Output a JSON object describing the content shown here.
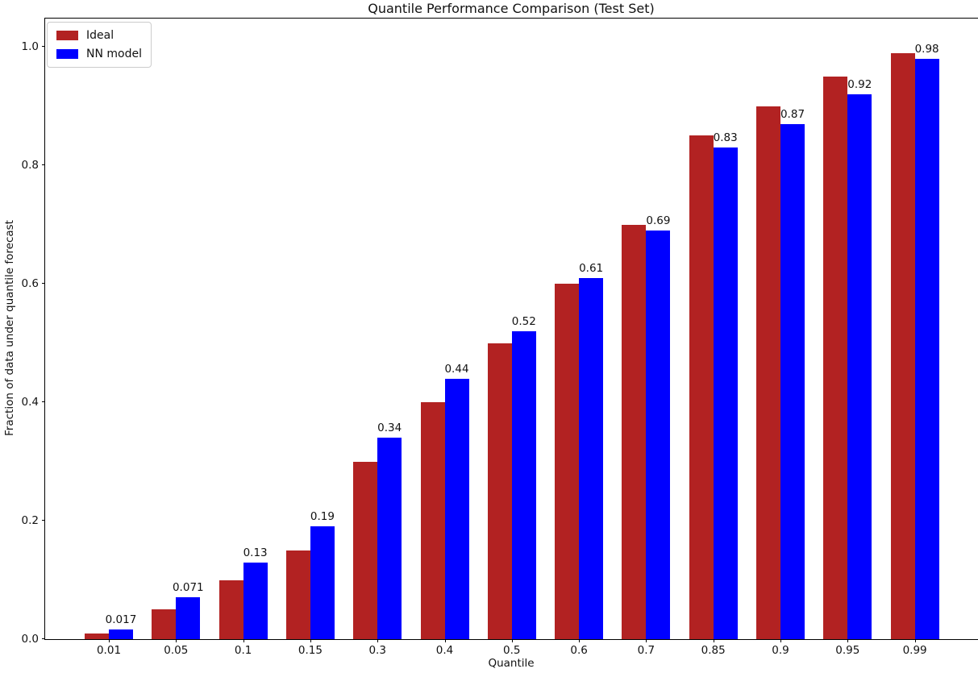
{
  "chart_data": {
    "type": "bar",
    "title": "Quantile Performance Comparison (Test Set)",
    "xlabel": "Quantile",
    "ylabel": "Fraction of data under quantile forecast",
    "categories": [
      "0.01",
      "0.05",
      "0.1",
      "0.15",
      "0.3",
      "0.4",
      "0.5",
      "0.6",
      "0.7",
      "0.85",
      "0.9",
      "0.95",
      "0.99"
    ],
    "series": [
      {
        "name": "Ideal",
        "color": "#b22222",
        "values": [
          0.01,
          0.05,
          0.1,
          0.15,
          0.3,
          0.4,
          0.5,
          0.6,
          0.7,
          0.85,
          0.9,
          0.95,
          0.99
        ],
        "bar_labels": [
          "",
          "",
          "",
          "",
          "",
          "",
          "",
          "",
          "",
          "",
          "",
          "",
          ""
        ]
      },
      {
        "name": "NN model",
        "color": "#0000ff",
        "values": [
          0.017,
          0.071,
          0.13,
          0.19,
          0.34,
          0.44,
          0.52,
          0.61,
          0.69,
          0.83,
          0.87,
          0.92,
          0.98
        ],
        "bar_labels": [
          "0.017",
          "0.071",
          "0.13",
          "0.19",
          "0.34",
          "0.44",
          "0.52",
          "0.61",
          "0.69",
          "0.83",
          "0.87",
          "0.92",
          "0.98"
        ]
      }
    ],
    "yticks": {
      "values": [
        0.0,
        0.2,
        0.4,
        0.6,
        0.8,
        1.0
      ],
      "labels": [
        "0.0",
        "0.2",
        "0.4",
        "0.6",
        "0.8",
        "1.0"
      ]
    },
    "ylim": [
      0,
      1.048
    ],
    "grid": false,
    "legend_position": "upper left",
    "axis_color": "#000000",
    "background_color": "#ffffff"
  }
}
